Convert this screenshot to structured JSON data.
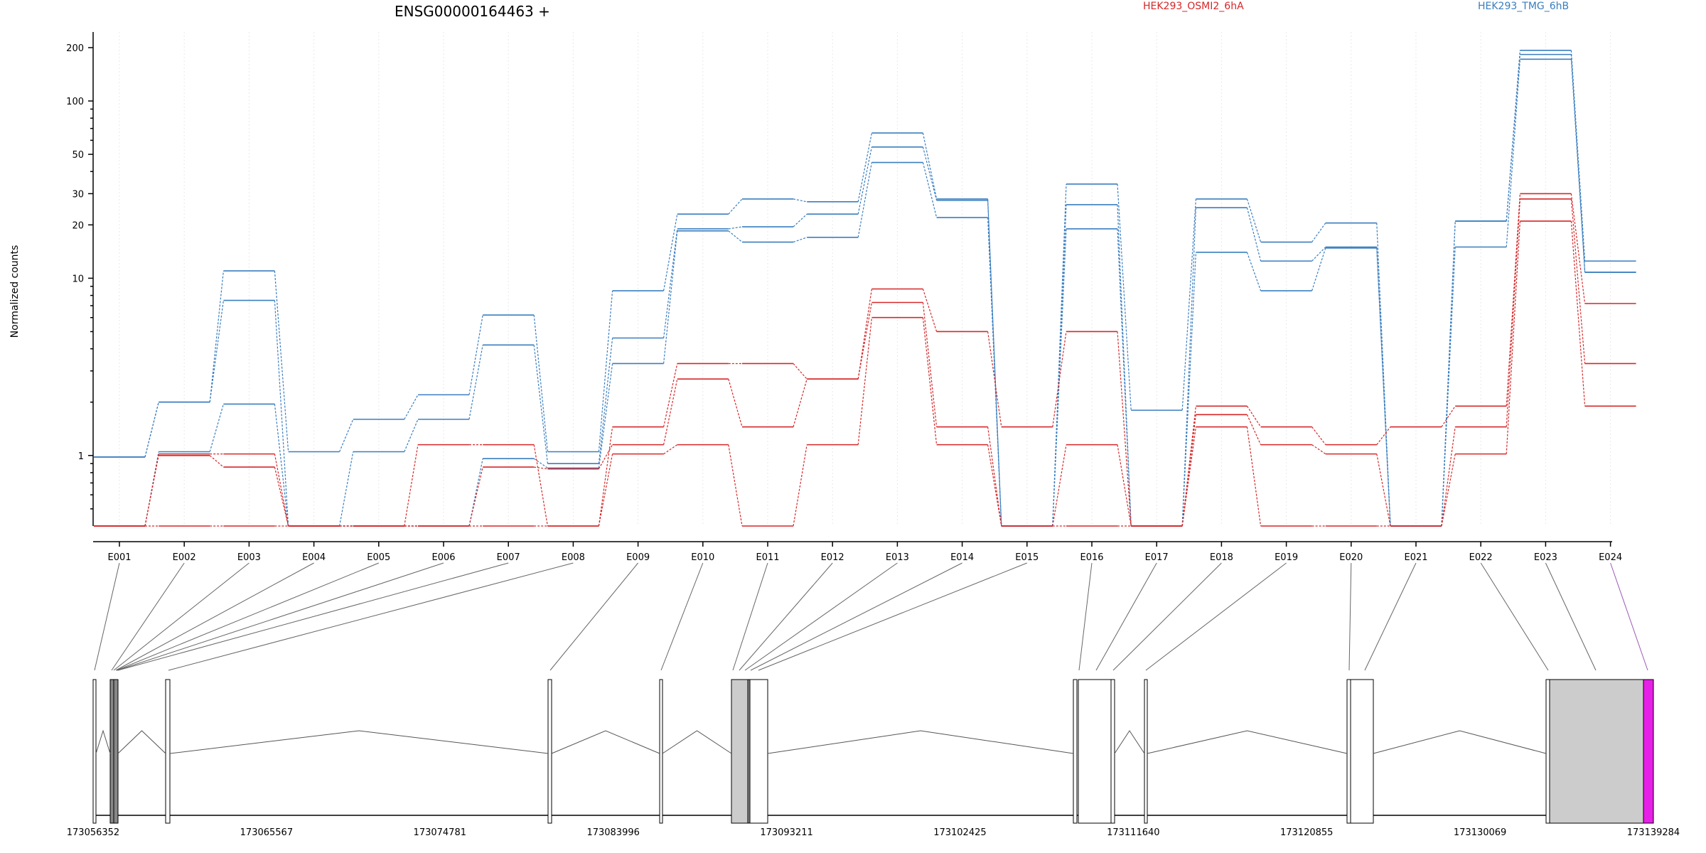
{
  "chart_data": {
    "type": "line",
    "title": "ENSG00000164463 +",
    "ylabel": "Normalized counts",
    "yscale": "log",
    "ylim": [
      0.4,
      250
    ],
    "yticks": [
      1,
      10,
      20,
      30,
      50,
      100,
      200
    ],
    "legend": [
      {
        "name": "HEK293_OSMI2_6hA",
        "color": "#d62728"
      },
      {
        "name": "HEK293_TMG_6hB",
        "color": "#3a7ebf"
      }
    ],
    "categories": [
      "E001",
      "E002",
      "E003",
      "E004",
      "E005",
      "E006",
      "E007",
      "E008",
      "E009",
      "E010",
      "E011",
      "E012",
      "E013",
      "E014",
      "E015",
      "E016",
      "E017",
      "E018",
      "E019",
      "E020",
      "E021",
      "E022",
      "E023",
      "E024"
    ],
    "series": [
      {
        "group": "HEK293_TMG_6hB",
        "color": "#3a7ebf",
        "values": [
          0.98,
          2.0,
          11.0,
          1.05,
          1.6,
          2.2,
          6.2,
          1.05,
          8.5,
          23.0,
          28.0,
          27.0,
          66.0,
          28.0,
          0.4,
          34.0,
          1.8,
          28.0,
          16.0,
          20.5,
          0.4,
          21.0,
          193.0,
          12.5
        ]
      },
      {
        "group": "HEK293_TMG_6hB",
        "color": "#3a7ebf",
        "values": [
          0.98,
          2.0,
          7.5,
          0.4,
          1.05,
          1.6,
          4.2,
          0.9,
          4.6,
          19.0,
          19.5,
          23.0,
          55.0,
          27.5,
          0.4,
          26.0,
          0.4,
          25.0,
          12.5,
          15.0,
          0.4,
          21.0,
          183.0,
          10.8
        ]
      },
      {
        "group": "HEK293_TMG_6hB",
        "color": "#3a7ebf",
        "values": [
          0.4,
          1.05,
          1.95,
          0.4,
          0.4,
          0.4,
          0.96,
          0.85,
          3.3,
          18.5,
          16.0,
          17.0,
          45.0,
          22.0,
          0.4,
          19.0,
          0.4,
          14.0,
          8.5,
          14.8,
          0.4,
          15.0,
          172.0,
          10.8
        ]
      },
      {
        "group": "HEK293_OSMI2_6hA",
        "color": "#d62728",
        "values": [
          0.4,
          1.02,
          1.02,
          0.4,
          0.4,
          1.15,
          1.15,
          0.4,
          1.45,
          3.3,
          3.3,
          2.7,
          8.7,
          5.0,
          1.45,
          5.0,
          0.4,
          1.9,
          1.45,
          1.15,
          1.45,
          1.9,
          30.0,
          7.2
        ]
      },
      {
        "group": "HEK293_OSMI2_6hA",
        "color": "#d62728",
        "values": [
          0.4,
          1.0,
          0.86,
          0.4,
          0.4,
          0.4,
          0.86,
          0.84,
          1.15,
          2.7,
          1.45,
          2.7,
          7.3,
          1.45,
          0.4,
          1.15,
          0.4,
          1.7,
          1.15,
          1.02,
          0.4,
          1.45,
          28.0,
          3.3
        ]
      },
      {
        "group": "HEK293_OSMI2_6hA",
        "color": "#d62728",
        "values": [
          0.4,
          0.4,
          0.4,
          0.4,
          0.4,
          0.4,
          0.4,
          0.4,
          1.02,
          1.15,
          0.4,
          1.15,
          6.0,
          1.15,
          0.4,
          0.4,
          0.4,
          1.45,
          0.4,
          0.4,
          0.4,
          1.02,
          21.0,
          1.9
        ]
      }
    ],
    "genomic_axis": {
      "ticks": [
        "173056352",
        "173065567",
        "173074781",
        "173083996",
        "173093211",
        "173102425",
        "173111640",
        "173120855",
        "173130069",
        "173139284"
      ]
    },
    "grid": "vertical dotted",
    "legend_placement": "top"
  }
}
